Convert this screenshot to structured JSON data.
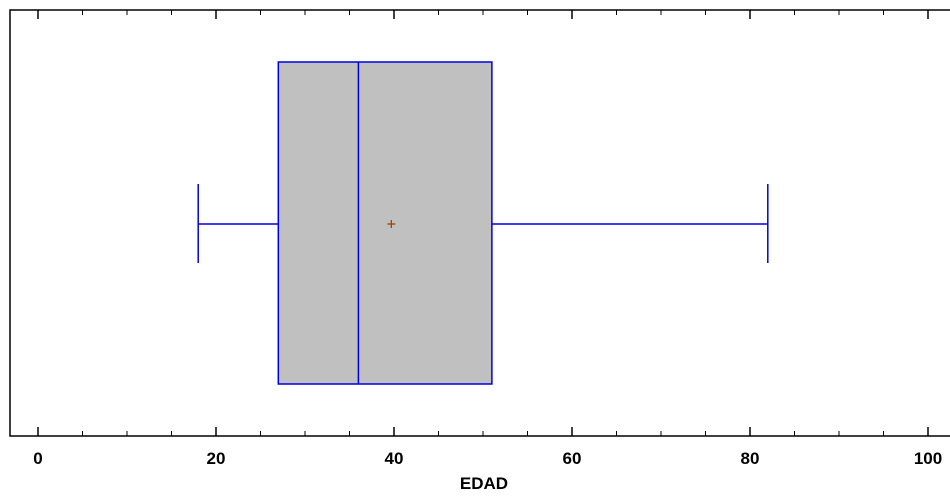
{
  "chart_data": {
    "type": "boxplot",
    "xlabel": "EDAD",
    "xlim": [
      -3,
      102
    ],
    "x_major_ticks": [
      0,
      20,
      40,
      60,
      80,
      100
    ],
    "x_minor_ticks": [
      5,
      10,
      15,
      25,
      30,
      35,
      45,
      50,
      55,
      65,
      70,
      75,
      85,
      90,
      95
    ],
    "x_tick_labels": [
      "0",
      "20",
      "40",
      "60",
      "80",
      "100"
    ],
    "box": {
      "min": 18,
      "q1": 27,
      "median": 36,
      "q3": 51,
      "max": 82,
      "mean": 39.7
    },
    "colors": {
      "box_fill": "#c0c0c0",
      "box_stroke": "#0000e0",
      "mean_marker": "#a04000",
      "axis": "#000000"
    },
    "grid": false
  }
}
